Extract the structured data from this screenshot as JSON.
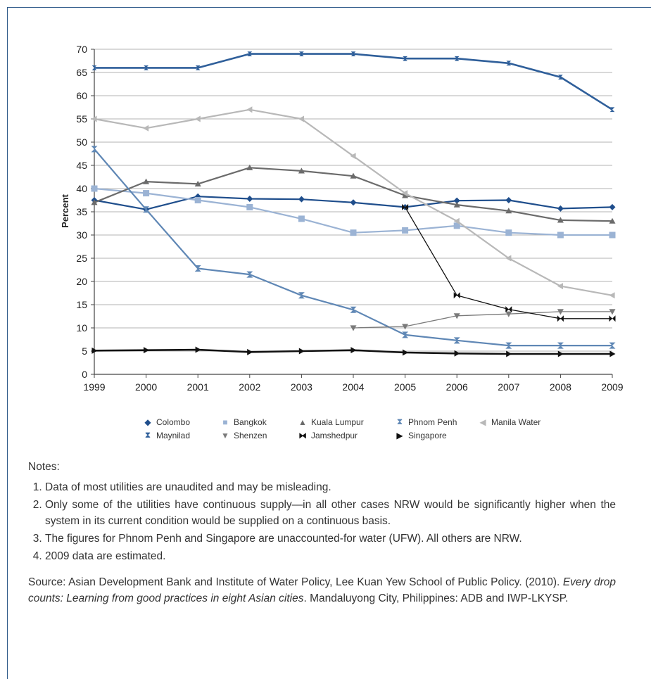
{
  "chart_data": {
    "type": "line",
    "ylabel": "Percent",
    "xlabel": "",
    "ylim": [
      0,
      70
    ],
    "yticks": [
      0,
      5,
      10,
      15,
      20,
      25,
      30,
      35,
      40,
      45,
      50,
      55,
      60,
      65,
      70
    ],
    "categories": [
      "1999",
      "2000",
      "2001",
      "2002",
      "2003",
      "2004",
      "2005",
      "2006",
      "2007",
      "2008",
      "2009"
    ],
    "grid": "horizontal",
    "legend_position": "bottom",
    "series": [
      {
        "name": "Colombo",
        "marker": "diamond",
        "color": "#1f4e8c",
        "width": 2.2,
        "values": [
          37.5,
          35.5,
          38.3,
          37.8,
          37.7,
          37.0,
          36.0,
          37.4,
          37.5,
          35.7,
          36.0
        ]
      },
      {
        "name": "Bangkok",
        "marker": "square",
        "color": "#9bb3d4",
        "width": 2.2,
        "values": [
          40.0,
          39.0,
          37.5,
          36.0,
          33.5,
          30.5,
          31.0,
          32.0,
          30.5,
          30.0,
          30.0
        ]
      },
      {
        "name": "Kuala Lumpur",
        "marker": "triangle-up",
        "color": "#6b6b6b",
        "width": 2.2,
        "values": [
          37.0,
          41.5,
          41.0,
          44.5,
          43.8,
          42.7,
          38.5,
          36.5,
          35.2,
          33.2,
          33.0
        ]
      },
      {
        "name": "Phnom Penh",
        "marker": "hourglass",
        "color": "#5f87b5",
        "width": 2.2,
        "values": [
          48.5,
          35.5,
          22.8,
          21.5,
          17.0,
          13.9,
          8.5,
          7.3,
          6.2,
          6.2,
          6.2
        ]
      },
      {
        "name": "Manila Water",
        "marker": "triangle-left",
        "color": "#b8b8b8",
        "width": 2.2,
        "values": [
          55.0,
          53.0,
          55.0,
          57.0,
          55.0,
          47.0,
          39.0,
          33.0,
          25.0,
          19.0,
          17.0
        ]
      },
      {
        "name": "Maynilad",
        "marker": "hourglass-small",
        "color": "#2f5f9a",
        "width": 2.6,
        "values": [
          66.0,
          66.0,
          66.0,
          69.0,
          69.0,
          69.0,
          68.0,
          68.0,
          67.0,
          64.0,
          57.0
        ]
      },
      {
        "name": "Shenzen",
        "marker": "triangle-down",
        "color": "#7a7a7a",
        "width": 1.3,
        "values": [
          null,
          null,
          null,
          null,
          null,
          10.0,
          10.3,
          12.6,
          13.0,
          13.5,
          13.5
        ]
      },
      {
        "name": "Jamshedpur",
        "marker": "bowtie",
        "color": "#111111",
        "width": 1.3,
        "values": [
          null,
          null,
          null,
          null,
          null,
          null,
          36.0,
          17.0,
          14.0,
          12.0,
          12.0
        ]
      },
      {
        "name": "Singapore",
        "marker": "triangle-right",
        "color": "#111111",
        "width": 2.6,
        "values": [
          5.1,
          5.2,
          5.3,
          4.8,
          5.0,
          5.2,
          4.7,
          4.5,
          4.4,
          4.4,
          4.4
        ]
      }
    ]
  },
  "legend_symbols": {
    "Colombo": "◆",
    "Bangkok": "■",
    "Kuala Lumpur": "▲",
    "Phnom Penh": "⧗",
    "Manila Water": "◀",
    "Maynilad": "⧗",
    "Shenzen": "▼",
    "Jamshedpur": "⧓",
    "Singapore": "▶"
  },
  "notes": {
    "heading": "Notes:",
    "items": [
      "Data of most utilities are unaudited and may be misleading.",
      "Only some of the utilities have continuous supply—in all other cases NRW would be significantly higher when the system in its current condition would be supplied on a continuous basis.",
      "The figures for Phnom Penh and Singapore are unaccounted-for water (UFW). All others are NRW.",
      "2009 data are estimated."
    ],
    "source_prefix": "Source: Asian Development Bank and Institute of Water Policy, Lee Kuan Yew School of Public Policy. (2010). ",
    "source_title": "Every drop counts: Learning from good practices in eight Asian cities",
    "source_suffix": ". Mandaluyong City, Philippines: ADB and IWP-LKYSP."
  }
}
